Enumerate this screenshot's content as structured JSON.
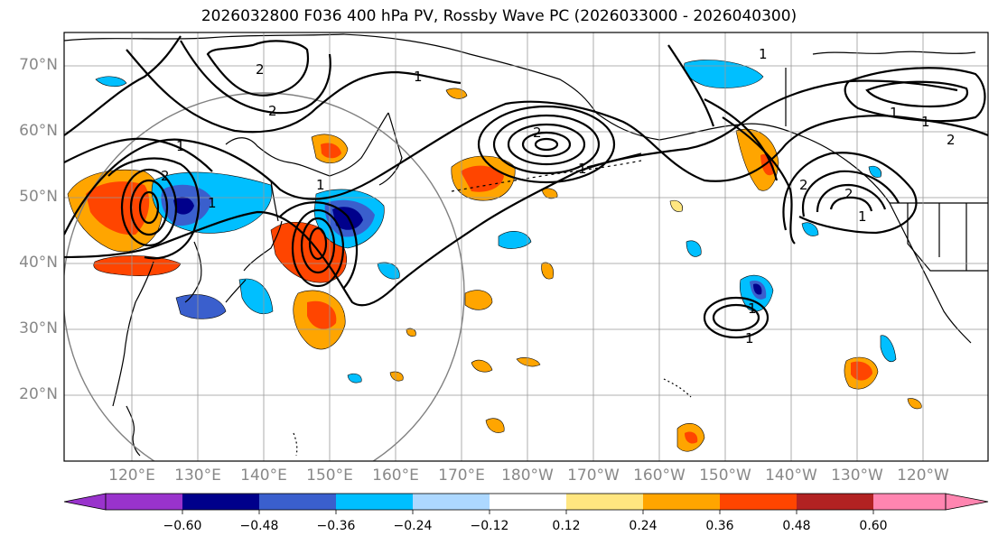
{
  "map": {
    "title": "2026032800 F036 400 hPa PV, Rossby Wave PC (2026033000 - 2026040300)",
    "lat_labels": [
      "70°N",
      "60°N",
      "50°N",
      "40°N",
      "30°N",
      "20°N"
    ],
    "lon_labels": [
      "120°E",
      "130°E",
      "140°E",
      "150°E",
      "160°E",
      "170°E",
      "180°W",
      "170°W",
      "160°W",
      "150°W",
      "140°W",
      "130°W",
      "120°W"
    ],
    "contour_labels": [
      "1",
      "2",
      "2",
      "1",
      "1",
      "2",
      "1",
      "2",
      "1",
      "1",
      "1",
      "2",
      "1",
      "1",
      "1",
      "2",
      "2",
      "1"
    ]
  },
  "colorbar": {
    "ticks": [
      "−0.60",
      "−0.48",
      "−0.36",
      "−0.24",
      "−0.12",
      "0.12",
      "0.24",
      "0.36",
      "0.48",
      "0.60"
    ],
    "colors": [
      "#9933cc",
      "#00008b",
      "#3a5fcd",
      "#00bfff",
      "#add8ff",
      "#ffffff",
      "#ffe680",
      "#ffa500",
      "#ff4500",
      "#b22222",
      "#ff85b0"
    ]
  },
  "colors": {
    "land_outline": "#000000",
    "gridline": "#999999",
    "circle": "#808080"
  }
}
